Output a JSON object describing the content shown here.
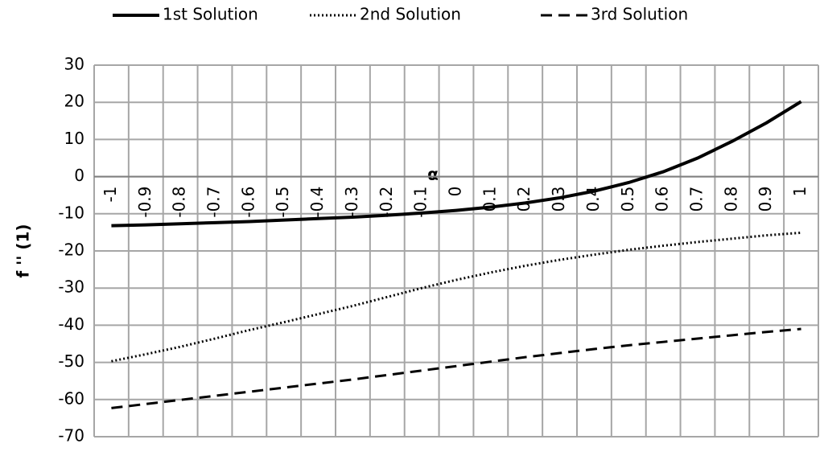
{
  "chart_data": {
    "type": "line",
    "categories": [
      "-1",
      "-0.9",
      "-0.8",
      "-0.7",
      "-0.6",
      "-0.5",
      "-0.4",
      "-0.3",
      "-0.2",
      "-0.1",
      "0",
      "0.1",
      "0.2",
      "0.3",
      "0.4",
      "0.5",
      "0.6",
      "0.7",
      "0.8",
      "0.9",
      "1"
    ],
    "x_label": "α",
    "y_label": "f '' (1)",
    "ylim": [
      -70,
      30
    ],
    "yticks": [
      -70,
      -60,
      -50,
      -40,
      -30,
      -20,
      -10,
      0,
      10,
      20,
      30
    ],
    "grid": true,
    "series": [
      {
        "name": "1st Solution",
        "color": "#000000",
        "dash": "solid",
        "values": [
          -13.2,
          -13,
          -12.7,
          -12.4,
          -12.1,
          -11.7,
          -11.3,
          -10.9,
          -10.4,
          -9.8,
          -9.1,
          -8.2,
          -7.1,
          -5.7,
          -3.9,
          -1.6,
          1.3,
          5.0,
          9.5,
          14.5,
          20.2
        ]
      },
      {
        "name": "2nd Solution",
        "color": "#000000",
        "dash": "dotted",
        "values": [
          -49.7,
          -47.8,
          -45.8,
          -43.6,
          -41.3,
          -39.2,
          -37,
          -34.8,
          -32.4,
          -30,
          -27.8,
          -25.8,
          -24,
          -22.4,
          -21,
          -19.7,
          -18.6,
          -17.6,
          -16.7,
          -15.8,
          -15.1
        ]
      },
      {
        "name": "3rd Solution",
        "color": "#000000",
        "dash": "dashed",
        "values": [
          -62.3,
          -61.2,
          -60.1,
          -59,
          -57.9,
          -56.8,
          -55.7,
          -54.6,
          -53.4,
          -52.2,
          -51,
          -49.8,
          -48.6,
          -47.5,
          -46.4,
          -45.4,
          -44.5,
          -43.6,
          -42.7,
          -41.8,
          -41
        ]
      }
    ]
  }
}
